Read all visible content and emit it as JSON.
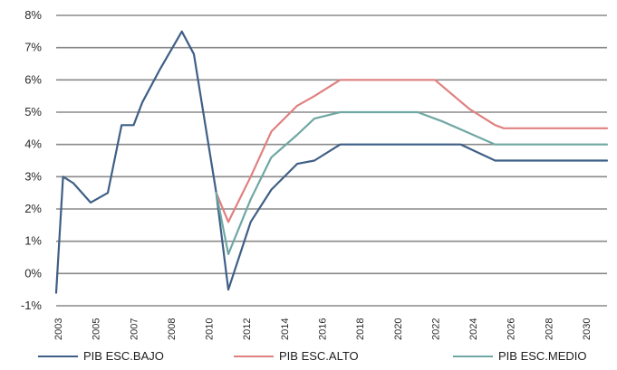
{
  "chart_data": {
    "type": "line",
    "title": "",
    "xlabel": "",
    "ylabel": "",
    "ylim": [
      -1,
      8
    ],
    "grid": true,
    "legend_position": "bottom",
    "y_ticks": [
      "-1%",
      "0%",
      "1%",
      "2%",
      "3%",
      "4%",
      "5%",
      "6%",
      "7%",
      "8%"
    ],
    "x_ticks": [
      "2003",
      "2005",
      "2007",
      "2008",
      "2010",
      "2012",
      "2014",
      "2016",
      "2018",
      "2020",
      "2022",
      "2024",
      "2026",
      "2028",
      "2030"
    ],
    "series": [
      {
        "name": "PIB ESC.BAJO",
        "color": "#3f5f86",
        "points": [
          [
            2003.0,
            -0.6
          ],
          [
            2003.4,
            3.0
          ],
          [
            2004.0,
            2.8
          ],
          [
            2005.0,
            2.2
          ],
          [
            2006.0,
            2.5
          ],
          [
            2006.8,
            4.6
          ],
          [
            2007.5,
            4.6
          ],
          [
            2008.0,
            5.3
          ],
          [
            2009.0,
            6.3
          ],
          [
            2010.3,
            7.5
          ],
          [
            2011.0,
            6.8
          ],
          [
            2012.3,
            2.5
          ],
          [
            2013.0,
            -0.5
          ],
          [
            2014.3,
            1.6
          ],
          [
            2015.5,
            2.6
          ],
          [
            2017.0,
            3.4
          ],
          [
            2018.0,
            3.5
          ],
          [
            2019.5,
            4.0
          ],
          [
            2026.5,
            4.0
          ],
          [
            2028.5,
            3.5
          ],
          [
            2035.0,
            3.5
          ]
        ]
      },
      {
        "name": "PIB ESC.ALTO",
        "color": "#e08080",
        "points": [
          [
            2012.3,
            2.5
          ],
          [
            2013.0,
            1.6
          ],
          [
            2014.3,
            3.0
          ],
          [
            2015.5,
            4.4
          ],
          [
            2017.0,
            5.2
          ],
          [
            2018.0,
            5.5
          ],
          [
            2019.5,
            6.0
          ],
          [
            2025.0,
            6.0
          ],
          [
            2027.0,
            5.1
          ],
          [
            2028.5,
            4.6
          ],
          [
            2029.0,
            4.5
          ],
          [
            2035.0,
            4.5
          ]
        ]
      },
      {
        "name": "PIB ESC.MEDIO",
        "color": "#6fa7a4",
        "points": [
          [
            2012.3,
            2.5
          ],
          [
            2013.0,
            0.6
          ],
          [
            2014.3,
            2.3
          ],
          [
            2015.5,
            3.6
          ],
          [
            2017.0,
            4.3
          ],
          [
            2018.0,
            4.8
          ],
          [
            2019.5,
            5.0
          ],
          [
            2024.0,
            5.0
          ],
          [
            2025.5,
            4.7
          ],
          [
            2028.5,
            4.0
          ],
          [
            2035.0,
            4.0
          ]
        ]
      }
    ]
  },
  "legend": {
    "items": [
      {
        "label": "PIB ESC.BAJO",
        "color": "#3f5f86"
      },
      {
        "label": "PIB ESC.ALTO",
        "color": "#e08080"
      },
      {
        "label": "PIB ESC.MEDIO",
        "color": "#6fa7a4"
      }
    ]
  }
}
